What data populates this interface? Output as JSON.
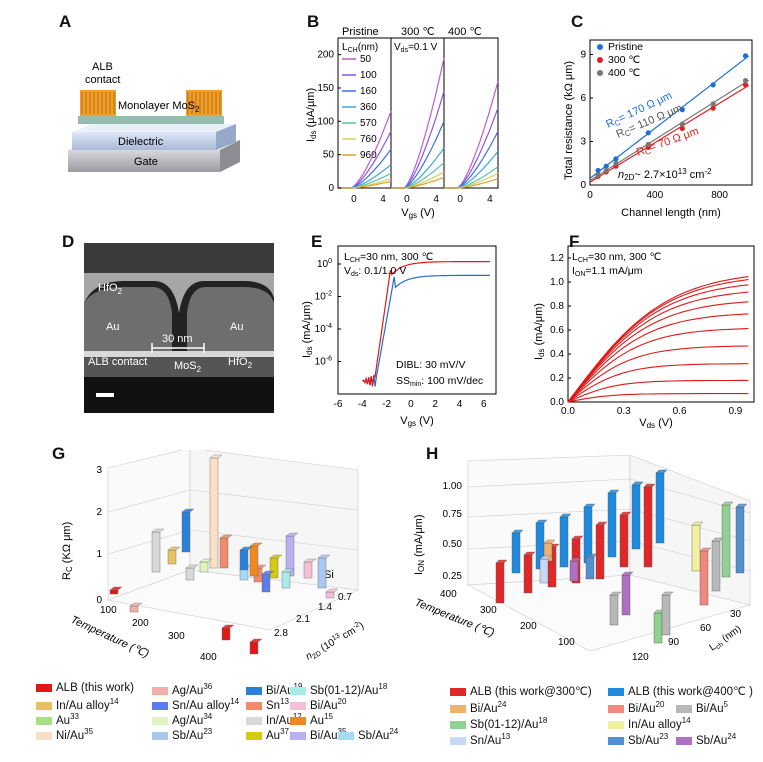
{
  "panels": {
    "A": {
      "label": "A",
      "alb": "ALB",
      "contact": "contact",
      "mos2": "Monolayer MoS",
      "mos2_sub": "2",
      "dielectric": "Dielectric",
      "gate": "Gate"
    },
    "B": {
      "label": "B",
      "col_titles": [
        "Pristine",
        "300 ℃",
        "400 ℃"
      ],
      "lch_label": "L",
      "lch_sub": "CH",
      "lch_unit": "(nm)",
      "vds_note": "V",
      "vds_sub": "ds",
      "vds_val": "=0.1 V",
      "lengths": [
        "50",
        "100",
        "160",
        "360",
        "570",
        "760",
        "960"
      ],
      "length_colors": [
        "#c05ccf",
        "#8a58e0",
        "#3b6fe8",
        "#38a7e0",
        "#58c8a0",
        "#d8d060",
        "#e0a030"
      ],
      "ylabel": "I",
      "ylabel_sub": "ds",
      "ylabel_unit": " (µA/µm)",
      "yticks": [
        "0",
        "50",
        "100",
        "150",
        "200"
      ],
      "xticks": [
        "0",
        "4",
        "0",
        "4",
        "0",
        "4"
      ],
      "xlabel": "V",
      "xlabel_sub": "gs",
      "xlabel_unit": " (V)"
    },
    "C": {
      "label": "C",
      "legend": [
        "Pristine",
        "300 ℃",
        "400 ℃"
      ],
      "colors": [
        "#1e6ed8",
        "#e02020",
        "#777777"
      ],
      "rc": [
        "R",
        "R",
        "R"
      ],
      "rc_sub": "C",
      "rc_vals": [
        "= 170 Ω μm",
        "= 110 Ω μm",
        "= 70 Ω μm"
      ],
      "n2d": "n",
      "n2d_sub": "2D",
      "n2d_val": "~ 2.7×10",
      "n2d_exp": "13",
      "n2d_unit": " cm",
      "n2d_unit_exp": "-2",
      "ylabel": "Total resistance (kΩ μm)",
      "xlabel": "Channel length (nm)",
      "yticks": [
        "0",
        "3",
        "6",
        "9"
      ],
      "xticks": [
        "0",
        "400",
        "800"
      ]
    },
    "D": {
      "label": "D",
      "hfo2_top": "HfO",
      "hfo2_sub": "2",
      "au_left": "Au",
      "au_right": "Au",
      "gap": "30 nm",
      "alb_contact": "ALB contact",
      "mos2": "MoS",
      "mos2_sub": "2",
      "hfo2_right": "HfO",
      "hfo2_right_sub": "2"
    },
    "E": {
      "label": "E",
      "lch": "L",
      "lch_sub": "CH",
      "lch_val": "=30 nm, 300 ℃",
      "vds": "V",
      "vds_sub": "ds",
      "vds_val": ": 0.1/1.0 V",
      "dibl": "DIBL: 30 mV/V",
      "ss": "SS",
      "ss_sub": "min",
      "ss_val": ": 100 mV/dec",
      "ylabel": "I",
      "ylabel_sub": "ds",
      "ylabel_unit": " (mA/μm)",
      "xlabel": "V",
      "xlabel_sub": "gs",
      "xlabel_unit": " (V)",
      "yticks": [
        "10",
        "10",
        "10",
        "10"
      ],
      "yexps": [
        "0",
        "-2",
        "-4",
        "-6"
      ],
      "xticks": [
        "-6",
        "-4",
        "-2",
        "0",
        "2",
        "4",
        "6"
      ]
    },
    "F": {
      "label": "F",
      "lch": "L",
      "lch_sub": "CH",
      "lch_val": "=30 nm, 300 ℃",
      "ion": "I",
      "ion_sub": "ON",
      "ion_val": "=1.1 mA/μm",
      "ylabel": "I",
      "ylabel_sub": "ds",
      "ylabel_unit": " (mA/μm)",
      "xlabel": "V",
      "xlabel_sub": "ds",
      "xlabel_unit": " (V)",
      "yticks": [
        "0.0",
        "0.2",
        "0.4",
        "0.6",
        "0.8",
        "1.0",
        "1.2"
      ],
      "xticks": [
        "0.0",
        "0.3",
        "0.6",
        "0.9"
      ]
    },
    "G": {
      "label": "G",
      "zlabel": "R",
      "zlabel_sub": "C",
      "zlabel_unit": " (KΩ μm)",
      "zticks": [
        "0",
        "1",
        "2",
        "3"
      ],
      "temp_label": "Temperature (℃)",
      "temp_ticks": [
        "100",
        "200",
        "300",
        "400"
      ],
      "n_label": "n",
      "n_sub": "2D",
      "n_unit": " (10",
      "n_exp": "13",
      "n_unit2": " cm",
      "n_unit_exp": "-2",
      "n_close": ")",
      "n_ticks": [
        "0.7",
        "1.4",
        "2.1",
        "2.8"
      ],
      "si": "Si"
    },
    "H": {
      "label": "H",
      "zlabel": "I",
      "zlabel_sub": "ON",
      "zlabel_unit": " (mA/μm)",
      "zticks": [
        "0.25",
        "0.50",
        "0.75",
        "1.00"
      ],
      "temp_label": "Temperature (℃)",
      "temp_ticks": [
        "400",
        "300",
        "200",
        "100"
      ],
      "l_label": "L",
      "l_sub": "ch",
      "l_unit": " (nm)",
      "l_ticks": [
        "30",
        "60",
        "90",
        "120"
      ]
    }
  },
  "legend_G": [
    {
      "text": "ALB (this work)",
      "sup": "",
      "color": "#e01818"
    },
    {
      "text": "Ag/Au",
      "sup": "36",
      "color": "#f2b0a8"
    },
    {
      "text": "Bi/Au",
      "sup": "19",
      "color": "#2a7fd8"
    },
    {
      "text": "Sb(01-12)/Au",
      "sup": "18",
      "color": "#a8ece8"
    },
    {
      "text": "In/Au alloy",
      "sup": "14",
      "color": "#e8c060"
    },
    {
      "text": "Sn/Au alloy",
      "sup": "14",
      "color": "#5c7ce8"
    },
    {
      "text": "Sn",
      "sup": "13",
      "color": "#f08a6a"
    },
    {
      "text": "Bi/Au",
      "sup": "20",
      "color": "#f4c0d8"
    },
    {
      "text": "Au",
      "sup": "33",
      "color": "#a8e088"
    },
    {
      "text": "Ag/Au",
      "sup": "34",
      "color": "#e0f4c0"
    },
    {
      "text": "In/Au",
      "sup": "12",
      "color": "#d8d8d8"
    },
    {
      "text": "Au",
      "sup": "15",
      "color": "#f08820"
    },
    {
      "text": "Ni/Au",
      "sup": "35",
      "color": "#fbe0c8"
    },
    {
      "text": "Sb/Au",
      "sup": "23",
      "color": "#a8c8f0"
    },
    {
      "text": "Au",
      "sup": "37",
      "color": "#d8c810"
    },
    {
      "text": "Bi/Au",
      "sup": "35",
      "color": "#b8b0f0"
    },
    {
      "text": "Sb/Au",
      "sup": "24",
      "color": "#a8daf8"
    }
  ],
  "legend_H": [
    {
      "text": "ALB (this work@300℃)",
      "sup": "",
      "color": "#e02828"
    },
    {
      "text": "ALB (this work@400℃ )",
      "sup": "",
      "color": "#1e8ae0"
    },
    {
      "text": "Bi/Au",
      "sup": "24",
      "color": "#f0b070"
    },
    {
      "text": "Bi/Au",
      "sup": "20",
      "color": "#f08880"
    },
    {
      "text": "Bi/Au",
      "sup": "5",
      "color": "#b8b8b8"
    },
    {
      "text": "Sb(01-12)/Au",
      "sup": "18",
      "color": "#90d090"
    },
    {
      "text": "In/Au alloy",
      "sup": "14",
      "color": "#f0f0a0"
    },
    {
      "text": "Sn/Au",
      "sup": "13",
      "color": "#c8d8f0"
    },
    {
      "text": "Sb/Au",
      "sup": "23",
      "color": "#5090d0"
    },
    {
      "text": "Sb/Au",
      "sup": "24",
      "color": "#b070c0"
    }
  ],
  "chart_data": [
    {
      "type": "line",
      "title": "B: Ids vs Vgs for channel lengths",
      "xlabel": "Vgs (V)",
      "ylabel": "Ids (µA/µm)",
      "ylim": [
        0,
        225
      ],
      "panels": [
        "Pristine",
        "300 ℃",
        "400 ℃"
      ],
      "series": [
        {
          "name": "50",
          "max": [
            115,
            195,
            160
          ]
        },
        {
          "name": "100",
          "max": [
            85,
            145,
            120
          ]
        },
        {
          "name": "160",
          "max": [
            58,
            100,
            85
          ]
        },
        {
          "name": "360",
          "max": [
            35,
            60,
            55
          ]
        },
        {
          "name": "570",
          "max": [
            22,
            38,
            32
          ]
        },
        {
          "name": "760",
          "max": [
            14,
            24,
            22
          ]
        },
        {
          "name": "960",
          "max": [
            10,
            16,
            14
          ]
        }
      ]
    },
    {
      "type": "scatter",
      "title": "C: Total resistance vs channel length",
      "xlabel": "Channel length (nm)",
      "ylabel": "Total resistance (kΩ μm)",
      "xlim": [
        0,
        1000
      ],
      "ylim": [
        0,
        10
      ],
      "x": [
        50,
        100,
        160,
        360,
        570,
        760,
        960
      ],
      "series": [
        {
          "name": "Pristine",
          "values": [
            1.0,
            1.3,
            1.8,
            3.6,
            5.2,
            6.9,
            8.9
          ]
        },
        {
          "name": "300 ℃",
          "values": [
            0.6,
            0.9,
            1.3,
            2.6,
            3.9,
            5.3,
            6.9
          ]
        },
        {
          "name": "400 ℃",
          "values": [
            0.7,
            1.0,
            1.5,
            2.8,
            4.2,
            5.6,
            7.2
          ]
        }
      ]
    },
    {
      "type": "line",
      "title": "E: transfer curves",
      "xlabel": "Vgs (V)",
      "ylabel": "Ids (mA/μm)",
      "xlim": [
        -6,
        7
      ],
      "series": [
        {
          "name": "Vds 1.0 V"
        },
        {
          "name": "Vds 0.1 V"
        }
      ]
    },
    {
      "type": "line",
      "title": "F: output curves",
      "xlabel": "Vds (V)",
      "ylabel": "Ids (mA/μm)",
      "xlim": [
        0,
        1.0
      ],
      "ylim": [
        0,
        1.3
      ],
      "saturation_values": [
        1.1,
        1.07,
        1.02,
        0.95,
        0.86,
        0.75,
        0.62,
        0.47,
        0.32,
        0.18,
        0.07
      ]
    }
  ]
}
